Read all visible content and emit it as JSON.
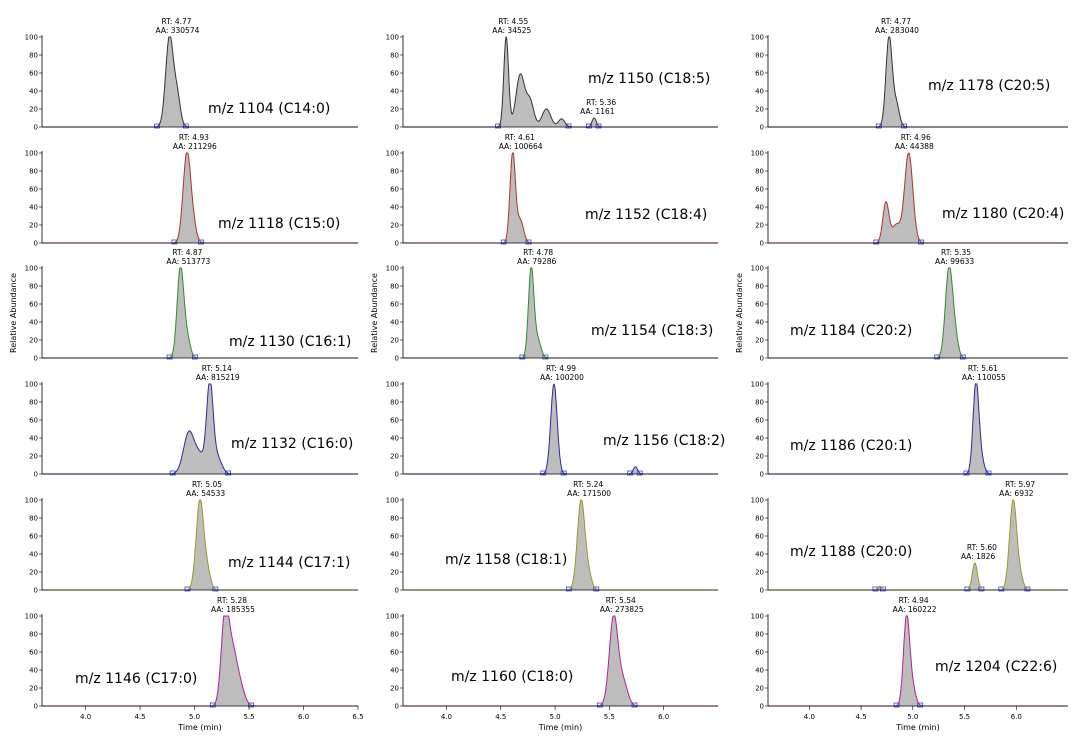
{
  "axis_labels": {
    "x": "Time (min)",
    "y": "Relative Abundance"
  },
  "y_ticks": [
    "0",
    "20",
    "40",
    "60",
    "80",
    "100"
  ],
  "x_tick_sets": [
    [
      "4.0",
      "4.5",
      "5.0",
      "5.5",
      "6.0",
      "6.5"
    ],
    [
      "4.0",
      "4.5",
      "5.0",
      "5.5",
      "6.0"
    ],
    [
      "4.0",
      "4.5",
      "5.0",
      "5.5",
      "6.0"
    ]
  ],
  "chart_data": [
    {
      "type": "area",
      "label": "m/z 1104 (C14:0)",
      "color": "#333333",
      "xlim": [
        3.6,
        6.5
      ],
      "ylim": [
        0,
        100
      ],
      "peaks": [
        {
          "rt": 4.77,
          "h": 100,
          "w": 0.035
        },
        {
          "rt": 4.84,
          "h": 33,
          "w": 0.03
        }
      ],
      "annotations": [
        {
          "rt": "RT: 4.77",
          "aa": "AA: 330574"
        }
      ]
    },
    {
      "type": "area",
      "label": "m/z 1150 (C18:5)",
      "color": "#333333",
      "xlim": [
        3.6,
        6.5
      ],
      "ylim": [
        0,
        100
      ],
      "peaks": [
        {
          "rt": 4.55,
          "h": 100,
          "w": 0.022
        },
        {
          "rt": 4.68,
          "h": 58,
          "w": 0.04
        },
        {
          "rt": 4.77,
          "h": 28,
          "w": 0.035
        },
        {
          "rt": 4.92,
          "h": 20,
          "w": 0.04
        },
        {
          "rt": 5.06,
          "h": 9,
          "w": 0.03
        },
        {
          "rt": 5.36,
          "h": 10,
          "w": 0.02
        }
      ],
      "annotations": [
        {
          "rt": "RT: 4.55",
          "aa": "AA: 34525"
        },
        {
          "rt": "RT: 5.36",
          "aa": "AA: 1161"
        }
      ]
    },
    {
      "type": "area",
      "label": "m/z 1178 (C20:5)",
      "color": "#333333",
      "xlim": [
        3.6,
        6.5
      ],
      "ylim": [
        0,
        100
      ],
      "peaks": [
        {
          "rt": 4.77,
          "h": 100,
          "w": 0.03
        },
        {
          "rt": 4.84,
          "h": 25,
          "w": 0.03
        }
      ],
      "annotations": [
        {
          "rt": "RT: 4.77",
          "aa": "AA: 283040"
        }
      ]
    },
    {
      "type": "area",
      "label": "m/z 1118 (C15:0)",
      "color": "#b03030",
      "xlim": [
        3.6,
        6.5
      ],
      "ylim": [
        0,
        100
      ],
      "peaks": [
        {
          "rt": 4.93,
          "h": 100,
          "w": 0.035
        },
        {
          "rt": 4.99,
          "h": 15,
          "w": 0.03
        }
      ],
      "annotations": [
        {
          "rt": "RT: 4.93",
          "aa": "AA: 211296"
        }
      ]
    },
    {
      "type": "area",
      "label": "m/z 1152 (C18:4)",
      "color": "#b03030",
      "xlim": [
        3.6,
        6.5
      ],
      "ylim": [
        0,
        100
      ],
      "peaks": [
        {
          "rt": 4.61,
          "h": 100,
          "w": 0.025
        },
        {
          "rt": 4.68,
          "h": 25,
          "w": 0.03
        }
      ],
      "annotations": [
        {
          "rt": "RT: 4.61",
          "aa": "AA: 100664"
        }
      ]
    },
    {
      "type": "area",
      "label": "m/z 1180 (C20:4)",
      "color": "#b03030",
      "xlim": [
        3.6,
        6.5
      ],
      "ylim": [
        0,
        100
      ],
      "peaks": [
        {
          "rt": 4.74,
          "h": 45,
          "w": 0.03
        },
        {
          "rt": 4.84,
          "h": 20,
          "w": 0.04
        },
        {
          "rt": 4.96,
          "h": 100,
          "w": 0.04
        }
      ],
      "annotations": [
        {
          "rt": "RT: 4.96",
          "aa": "AA: 44388"
        }
      ]
    },
    {
      "type": "area",
      "label": "m/z 1130 (C16:1)",
      "color": "#2e8b2e",
      "xlim": [
        3.6,
        6.5
      ],
      "ylim": [
        0,
        100
      ],
      "peaks": [
        {
          "rt": 4.87,
          "h": 100,
          "w": 0.03
        },
        {
          "rt": 4.93,
          "h": 22,
          "w": 0.03
        }
      ],
      "annotations": [
        {
          "rt": "RT: 4.87",
          "aa": "AA: 513773"
        }
      ]
    },
    {
      "type": "area",
      "label": "m/z 1154 (C18:3)",
      "color": "#2e8b2e",
      "xlim": [
        3.6,
        6.5
      ],
      "ylim": [
        0,
        100
      ],
      "peaks": [
        {
          "rt": 4.78,
          "h": 100,
          "w": 0.025
        },
        {
          "rt": 4.84,
          "h": 20,
          "w": 0.03
        }
      ],
      "annotations": [
        {
          "rt": "RT: 4.78",
          "aa": "AA: 79286"
        }
      ]
    },
    {
      "type": "area",
      "label": "m/z 1184 (C20:2)",
      "color": "#2e8b2e",
      "xlim": [
        3.6,
        6.5
      ],
      "ylim": [
        0,
        100
      ],
      "peaks": [
        {
          "rt": 5.35,
          "h": 100,
          "w": 0.035
        },
        {
          "rt": 5.41,
          "h": 20,
          "w": 0.03
        }
      ],
      "annotations": [
        {
          "rt": "RT: 5.35",
          "aa": "AA: 99633"
        }
      ]
    },
    {
      "type": "area",
      "label": "m/z 1132 (C16:0)",
      "color": "#2a2aa0",
      "xlim": [
        3.6,
        6.5
      ],
      "ylim": [
        0,
        100
      ],
      "peaks": [
        {
          "rt": 4.95,
          "h": 47,
          "w": 0.05
        },
        {
          "rt": 5.05,
          "h": 18,
          "w": 0.04
        },
        {
          "rt": 5.14,
          "h": 100,
          "w": 0.03
        },
        {
          "rt": 5.21,
          "h": 18,
          "w": 0.04
        }
      ],
      "annotations": [
        {
          "rt": "RT: 5.14",
          "aa": "AA: 815219"
        }
      ]
    },
    {
      "type": "area",
      "label": "m/z 1156 (C18:2)",
      "color": "#2a2aa0",
      "xlim": [
        3.6,
        6.5
      ],
      "ylim": [
        0,
        100
      ],
      "peaks": [
        {
          "rt": 4.99,
          "h": 100,
          "w": 0.03
        },
        {
          "rt": 5.74,
          "h": 8,
          "w": 0.02
        }
      ],
      "annotations": [
        {
          "rt": "RT: 4.99",
          "aa": "AA: 100200"
        }
      ]
    },
    {
      "type": "area",
      "label": "m/z 1186 (C20:1)",
      "color": "#2a2aa0",
      "xlim": [
        3.6,
        6.5
      ],
      "ylim": [
        0,
        100
      ],
      "peaks": [
        {
          "rt": 5.61,
          "h": 100,
          "w": 0.028
        },
        {
          "rt": 5.66,
          "h": 15,
          "w": 0.03
        }
      ],
      "annotations": [
        {
          "rt": "RT: 5.61",
          "aa": "AA: 110055"
        }
      ]
    },
    {
      "type": "area",
      "label": "m/z 1144 (C17:1)",
      "color": "#9a9a20",
      "xlim": [
        3.6,
        6.5
      ],
      "ylim": [
        0,
        100
      ],
      "peaks": [
        {
          "rt": 5.05,
          "h": 100,
          "w": 0.035
        },
        {
          "rt": 5.12,
          "h": 18,
          "w": 0.03
        }
      ],
      "annotations": [
        {
          "rt": "RT: 5.05",
          "aa": "AA: 54533"
        }
      ]
    },
    {
      "type": "area",
      "label": "m/z 1158 (C18:1)",
      "color": "#9a9a20",
      "xlim": [
        3.6,
        6.5
      ],
      "ylim": [
        0,
        100
      ],
      "peaks": [
        {
          "rt": 5.24,
          "h": 100,
          "w": 0.035
        },
        {
          "rt": 5.31,
          "h": 15,
          "w": 0.03
        }
      ],
      "annotations": [
        {
          "rt": "RT: 5.24",
          "aa": "AA: 171500"
        }
      ]
    },
    {
      "type": "area",
      "label": "m/z 1188 (C20:0)",
      "color": "#9a9a20",
      "xlim": [
        3.6,
        6.5
      ],
      "ylim": [
        0,
        100
      ],
      "peaks": [
        {
          "rt": 4.68,
          "h": 4,
          "w": 0.02
        },
        {
          "rt": 5.6,
          "h": 30,
          "w": 0.025
        },
        {
          "rt": 5.97,
          "h": 100,
          "w": 0.035
        },
        {
          "rt": 6.04,
          "h": 12,
          "w": 0.03
        }
      ],
      "annotations": [
        {
          "rt": "RT: 5.60",
          "aa": "AA: 1826"
        },
        {
          "rt": "RT: 5.97",
          "aa": "AA: 6932"
        }
      ]
    },
    {
      "type": "area",
      "label": "m/z 1146 (C17:0)",
      "color": "#b0209a",
      "xlim": [
        3.6,
        6.5
      ],
      "ylim": [
        0,
        100
      ],
      "peaks": [
        {
          "rt": 5.28,
          "h": 100,
          "w": 0.035
        },
        {
          "rt": 5.35,
          "h": 55,
          "w": 0.04
        },
        {
          "rt": 5.42,
          "h": 20,
          "w": 0.04
        }
      ],
      "annotations": [
        {
          "rt": "RT: 5.28",
          "aa": "AA: 185355"
        }
      ]
    },
    {
      "type": "area",
      "label": "m/z 1160 (C18:0)",
      "color": "#b0209a",
      "xlim": [
        3.6,
        6.5
      ],
      "ylim": [
        0,
        100
      ],
      "peaks": [
        {
          "rt": 5.54,
          "h": 100,
          "w": 0.04
        },
        {
          "rt": 5.63,
          "h": 25,
          "w": 0.04
        }
      ],
      "annotations": [
        {
          "rt": "RT: 5.54",
          "aa": "AA: 273825"
        }
      ]
    },
    {
      "type": "area",
      "label": "m/z 1204 (C22:6)",
      "color": "#b0209a",
      "xlim": [
        3.6,
        6.5
      ],
      "ylim": [
        0,
        100
      ],
      "peaks": [
        {
          "rt": 4.94,
          "h": 100,
          "w": 0.03
        },
        {
          "rt": 5.0,
          "h": 18,
          "w": 0.03
        }
      ],
      "annotations": [
        {
          "rt": "RT: 4.94",
          "aa": "AA: 160222"
        }
      ]
    }
  ]
}
